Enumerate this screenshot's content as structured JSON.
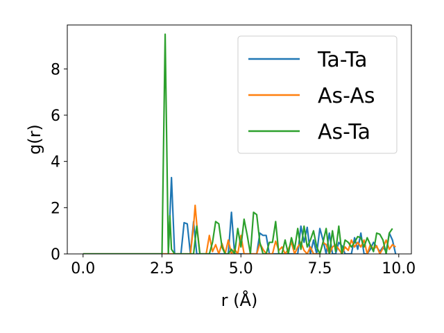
{
  "chart_data": {
    "type": "line",
    "title": "",
    "xlabel": "r (Å)",
    "ylabel": "g(r)",
    "xlim": [
      -0.5,
      10.4
    ],
    "ylim": [
      0,
      9.9
    ],
    "x_ticks": [
      0.0,
      2.5,
      5.0,
      7.5,
      10.0
    ],
    "x_tick_labels": [
      "0.0",
      "2.5",
      "5.0",
      "7.5",
      "10.0"
    ],
    "y_ticks": [
      0,
      2,
      4,
      6,
      8
    ],
    "y_tick_labels": [
      "0",
      "2",
      "4",
      "6",
      "8"
    ],
    "grid": false,
    "legend_position": "upper-right",
    "series": [
      {
        "name": "Ta-Ta",
        "color": "#1f77b4",
        "points": [
          [
            0.0,
            0
          ],
          [
            2.7,
            0
          ],
          [
            2.8,
            3.3
          ],
          [
            2.9,
            0
          ],
          [
            3.1,
            0
          ],
          [
            3.2,
            1.35
          ],
          [
            3.3,
            1.3
          ],
          [
            3.4,
            0
          ],
          [
            3.5,
            1.4
          ],
          [
            3.6,
            0
          ],
          [
            4.6,
            0
          ],
          [
            4.7,
            1.8
          ],
          [
            4.8,
            0
          ],
          [
            5.5,
            0
          ],
          [
            5.6,
            0.9
          ],
          [
            5.7,
            0.8
          ],
          [
            5.8,
            0.8
          ],
          [
            5.9,
            0
          ],
          [
            6.8,
            0
          ],
          [
            6.9,
            1.2
          ],
          [
            7.0,
            0.5
          ],
          [
            7.1,
            1.15
          ],
          [
            7.2,
            0
          ],
          [
            7.3,
            0.6
          ],
          [
            7.4,
            0
          ],
          [
            7.5,
            1.1
          ],
          [
            7.6,
            0.6
          ],
          [
            7.7,
            0
          ],
          [
            7.8,
            0.9
          ],
          [
            7.9,
            0
          ],
          [
            8.0,
            0
          ],
          [
            8.1,
            0.5
          ],
          [
            8.2,
            0.35
          ],
          [
            8.3,
            0
          ],
          [
            8.5,
            0
          ],
          [
            8.6,
            0.7
          ],
          [
            8.7,
            0.2
          ],
          [
            8.8,
            0.9
          ],
          [
            8.9,
            0
          ],
          [
            9.0,
            0
          ],
          [
            9.1,
            0.2
          ],
          [
            9.2,
            0.5
          ],
          [
            9.3,
            0.3
          ],
          [
            9.4,
            0.1
          ],
          [
            9.5,
            0.3
          ],
          [
            9.6,
            0.1
          ],
          [
            9.7,
            0.9
          ],
          [
            9.8,
            0.6
          ],
          [
            9.9,
            0
          ]
        ]
      },
      {
        "name": "As-As",
        "color": "#ff7f0e",
        "points": [
          [
            0.0,
            0
          ],
          [
            3.4,
            0
          ],
          [
            3.5,
            1.2
          ],
          [
            3.55,
            2.1
          ],
          [
            3.6,
            1.3
          ],
          [
            3.7,
            0
          ],
          [
            3.9,
            0
          ],
          [
            4.0,
            0.8
          ],
          [
            4.1,
            0.1
          ],
          [
            4.2,
            0.4
          ],
          [
            4.3,
            0
          ],
          [
            4.4,
            0.45
          ],
          [
            4.5,
            0
          ],
          [
            4.6,
            0.6
          ],
          [
            4.7,
            0
          ],
          [
            4.8,
            0.2
          ],
          [
            4.9,
            0
          ],
          [
            5.0,
            0.8
          ],
          [
            5.1,
            0
          ],
          [
            5.5,
            0
          ],
          [
            5.6,
            0.45
          ],
          [
            5.7,
            0.2
          ],
          [
            5.8,
            0
          ],
          [
            6.0,
            0
          ],
          [
            6.1,
            0.55
          ],
          [
            6.2,
            0.15
          ],
          [
            6.3,
            0.3
          ],
          [
            6.4,
            0
          ],
          [
            6.5,
            0.2
          ],
          [
            6.6,
            0.5
          ],
          [
            6.7,
            0
          ],
          [
            6.8,
            0.3
          ],
          [
            6.9,
            0.5
          ],
          [
            7.0,
            0.15
          ],
          [
            7.1,
            0
          ],
          [
            7.2,
            0.3
          ],
          [
            7.3,
            0
          ],
          [
            7.5,
            0
          ],
          [
            7.6,
            0.5
          ],
          [
            7.7,
            0.4
          ],
          [
            7.8,
            0
          ],
          [
            7.9,
            0.3
          ],
          [
            8.0,
            0.4
          ],
          [
            8.1,
            0.2
          ],
          [
            8.2,
            0
          ],
          [
            8.3,
            0.3
          ],
          [
            8.4,
            0.15
          ],
          [
            8.5,
            0.6
          ],
          [
            8.6,
            0.3
          ],
          [
            8.7,
            0.5
          ],
          [
            8.8,
            0.3
          ],
          [
            8.9,
            0.6
          ],
          [
            9.0,
            0
          ],
          [
            9.1,
            0.4
          ],
          [
            9.2,
            0.2
          ],
          [
            9.3,
            0.35
          ],
          [
            9.4,
            0
          ],
          [
            9.5,
            0.25
          ],
          [
            9.6,
            0.6
          ],
          [
            9.7,
            0.2
          ],
          [
            9.8,
            0.4
          ],
          [
            9.9,
            0.3
          ]
        ]
      },
      {
        "name": "As-Ta",
        "color": "#2ca02c",
        "points": [
          [
            0.0,
            0
          ],
          [
            2.5,
            0
          ],
          [
            2.6,
            9.5
          ],
          [
            2.7,
            0
          ],
          [
            2.75,
            1.65
          ],
          [
            2.8,
            0.2
          ],
          [
            2.9,
            0
          ],
          [
            3.5,
            0
          ],
          [
            3.6,
            1.2
          ],
          [
            3.7,
            0
          ],
          [
            4.0,
            0
          ],
          [
            4.1,
            0.5
          ],
          [
            4.2,
            1.4
          ],
          [
            4.3,
            1.3
          ],
          [
            4.4,
            0.3
          ],
          [
            4.5,
            0
          ],
          [
            4.6,
            0
          ],
          [
            4.7,
            0.2
          ],
          [
            4.8,
            0
          ],
          [
            4.9,
            1.1
          ],
          [
            5.0,
            0.3
          ],
          [
            5.1,
            1.5
          ],
          [
            5.2,
            0.8
          ],
          [
            5.3,
            0
          ],
          [
            5.4,
            1.8
          ],
          [
            5.5,
            1.7
          ],
          [
            5.6,
            0.5
          ],
          [
            5.7,
            0
          ],
          [
            5.8,
            0
          ],
          [
            5.9,
            0.5
          ],
          [
            6.0,
            0.5
          ],
          [
            6.1,
            1.4
          ],
          [
            6.2,
            0
          ],
          [
            6.3,
            0
          ],
          [
            6.4,
            0.6
          ],
          [
            6.5,
            0
          ],
          [
            6.6,
            0.7
          ],
          [
            6.7,
            0.2
          ],
          [
            6.8,
            1.1
          ],
          [
            6.9,
            0.2
          ],
          [
            7.0,
            1.2
          ],
          [
            7.1,
            0.3
          ],
          [
            7.2,
            0.6
          ],
          [
            7.3,
            1.0
          ],
          [
            7.4,
            0.3
          ],
          [
            7.5,
            0
          ],
          [
            7.6,
            0.5
          ],
          [
            7.7,
            1.1
          ],
          [
            7.8,
            0
          ],
          [
            7.9,
            1.0
          ],
          [
            8.0,
            0.1
          ],
          [
            8.1,
            1.2
          ],
          [
            8.2,
            0
          ],
          [
            8.3,
            0.6
          ],
          [
            8.4,
            0.5
          ],
          [
            8.5,
            0.3
          ],
          [
            8.6,
            0.5
          ],
          [
            8.7,
            0.75
          ],
          [
            8.8,
            0.7
          ],
          [
            8.9,
            0.3
          ],
          [
            9.0,
            0.7
          ],
          [
            9.1,
            0.4
          ],
          [
            9.2,
            0.1
          ],
          [
            9.3,
            0.9
          ],
          [
            9.4,
            0.85
          ],
          [
            9.5,
            0.6
          ],
          [
            9.6,
            0
          ],
          [
            9.7,
            0.9
          ],
          [
            9.8,
            1.1
          ]
        ]
      }
    ]
  }
}
